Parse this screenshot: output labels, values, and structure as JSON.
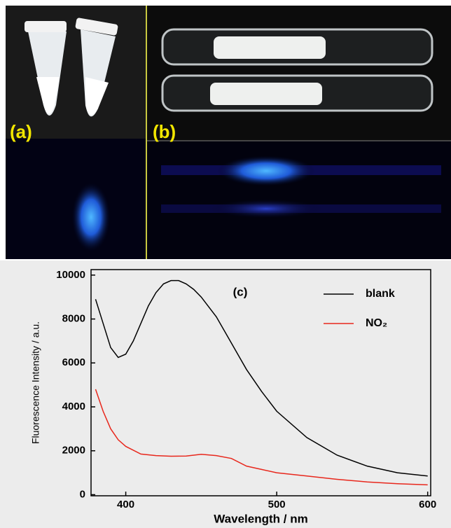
{
  "chart_data": {
    "type": "line",
    "panel_labels": [
      "(a)",
      "(b)"
    ],
    "annotation": "(c)",
    "x_label": "Wavelength / nm",
    "y_label": "Fluorescence Intensity / a.u.",
    "xlim": [
      377,
      602
    ],
    "xticks": [
      400,
      500,
      600
    ],
    "ylim": [
      -50,
      10250
    ],
    "yticks": [
      0,
      2000,
      4000,
      6000,
      8000,
      10000
    ],
    "legend": "upper right",
    "series": [
      {
        "name": "blank",
        "color": "#000000",
        "x": [
          380,
          385,
          390,
          395,
          400,
          405,
          410,
          415,
          420,
          425,
          430,
          435,
          440,
          445,
          450,
          460,
          470,
          480,
          490,
          500,
          520,
          540,
          560,
          580,
          600
        ],
        "values": [
          8900,
          7800,
          6700,
          6250,
          6400,
          7000,
          7800,
          8600,
          9200,
          9600,
          9750,
          9750,
          9600,
          9350,
          9000,
          8100,
          6900,
          5700,
          4700,
          3800,
          2600,
          1800,
          1300,
          1000,
          850
        ]
      },
      {
        "name": "NO₂",
        "color": "#e8271c",
        "x": [
          380,
          385,
          390,
          395,
          400,
          410,
          420,
          430,
          440,
          450,
          460,
          470,
          480,
          490,
          500,
          520,
          540,
          560,
          580,
          600
        ],
        "values": [
          4800,
          3800,
          3000,
          2500,
          2200,
          1850,
          1780,
          1750,
          1760,
          1840,
          1780,
          1650,
          1300,
          1150,
          1000,
          850,
          700,
          580,
          500,
          450
        ]
      }
    ]
  }
}
